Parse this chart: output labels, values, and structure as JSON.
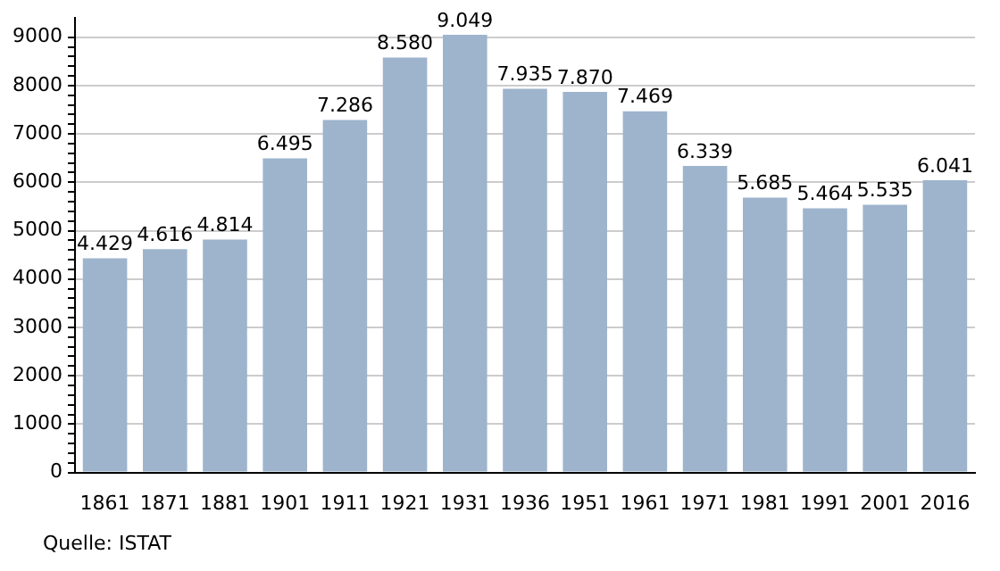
{
  "chart_data": {
    "type": "bar",
    "categories": [
      "1861",
      "1871",
      "1881",
      "1901",
      "1911",
      "1921",
      "1931",
      "1936",
      "1951",
      "1961",
      "1971",
      "1981",
      "1991",
      "2001",
      "2016"
    ],
    "values": [
      4429,
      4616,
      4814,
      6495,
      7286,
      8580,
      9049,
      7935,
      7870,
      7469,
      6339,
      5685,
      5464,
      5535,
      6041
    ],
    "value_labels": [
      "4.429",
      "4.616",
      "4.814",
      "6.495",
      "7.286",
      "8.580",
      "9.049",
      "7.935",
      "7.870",
      "7.469",
      "6.339",
      "5.685",
      "5.464",
      "5.535",
      "6.041"
    ],
    "color": "#9db4cc",
    "ylim": [
      0,
      9400
    ],
    "yticks": [
      0,
      {
        "value": 200,
        "label": null
      },
      {
        "value": 400,
        "label": null
      },
      {
        "value": 600,
        "label": null
      },
      {
        "value": 800,
        "label": null
      },
      1000,
      {
        "value": 1200,
        "label": null
      },
      {
        "value": 1400,
        "label": null
      },
      {
        "value": 1600,
        "label": null
      },
      {
        "value": 1800,
        "label": null
      },
      2000,
      {
        "value": 2200,
        "label": null
      },
      {
        "value": 2400,
        "label": null
      },
      {
        "value": 2600,
        "label": null
      },
      {
        "value": 2800,
        "label": null
      },
      3000,
      {
        "value": 3200,
        "label": null
      },
      {
        "value": 3400,
        "label": null
      },
      {
        "value": 3600,
        "label": null
      },
      {
        "value": 3800,
        "label": null
      },
      4000,
      {
        "value": 4200,
        "label": null
      },
      {
        "value": 4400,
        "label": null
      },
      {
        "value": 4600,
        "label": null
      },
      {
        "value": 4800,
        "label": null
      },
      5000,
      {
        "value": 5200,
        "label": null
      },
      {
        "value": 5400,
        "label": null
      },
      {
        "value": 5600,
        "label": null
      },
      {
        "value": 5800,
        "label": null
      },
      6000,
      {
        "value": 6200,
        "label": null
      },
      {
        "value": 6400,
        "label": null
      },
      {
        "value": 6600,
        "label": null
      },
      {
        "value": 6800,
        "label": null
      },
      7000,
      {
        "value": 7200,
        "label": null
      },
      {
        "value": 7400,
        "label": null
      },
      {
        "value": 7600,
        "label": null
      },
      {
        "value": 7800,
        "label": null
      },
      8000,
      {
        "value": 8200,
        "label": null
      },
      {
        "value": 8400,
        "label": null
      },
      {
        "value": 8600,
        "label": null
      },
      {
        "value": 8800,
        "label": null
      },
      9000
    ],
    "grid": "y",
    "annotations": [
      "Quelle: ISTAT"
    ]
  }
}
